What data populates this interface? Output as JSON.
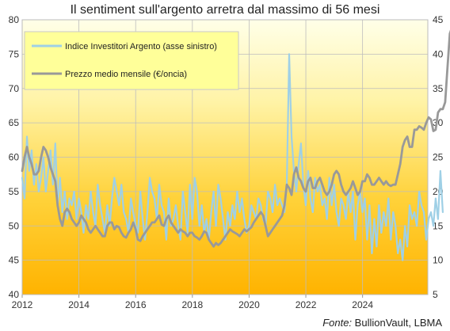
{
  "chart_data": {
    "type": "line",
    "title": "Il sentiment sull'argento arretra dal massimo di 56 mesi",
    "source_label": "Fonte:",
    "source_name": "BullionVault, LBMA",
    "x_ticks": [
      "2012",
      "2014",
      "2016",
      "2018",
      "2020",
      "2022",
      "2024"
    ],
    "xlim": [
      2012.0,
      2026.3
    ],
    "left_axis": {
      "ticks": [
        "40",
        "45",
        "50",
        "55",
        "60",
        "65",
        "70",
        "75",
        "80"
      ],
      "ylim": [
        40,
        80
      ]
    },
    "right_axis": {
      "ticks": [
        "5",
        "10",
        "15",
        "20",
        "25",
        "30",
        "35",
        "40",
        "45"
      ],
      "ylim": [
        5,
        45
      ]
    },
    "grid": true,
    "legend_position": "top-left",
    "background_gradient": [
      "#ffffe8",
      "#fff3a6",
      "#ffd23a",
      "#ffb300"
    ],
    "series": [
      {
        "name": "Indice Investitori Argento (asse sinistro)",
        "axis": "left",
        "color": "#9fd0e6",
        "x_start": 2012.0,
        "step": 0.0833,
        "values": [
          57,
          54,
          63,
          58,
          61,
          56,
          59,
          55,
          57,
          60,
          55,
          58,
          61,
          56,
          62,
          53,
          57,
          52,
          55,
          51,
          54,
          53,
          55,
          51,
          54,
          52,
          49,
          53,
          51,
          55,
          52,
          50,
          56,
          53,
          51,
          49,
          53,
          50,
          54,
          57,
          55,
          53,
          56,
          52,
          51,
          49,
          54,
          52,
          50,
          49,
          55,
          51,
          48,
          52,
          57,
          55,
          54,
          51,
          56,
          53,
          52,
          48,
          54,
          50,
          51,
          53,
          50,
          48,
          55,
          52,
          49,
          56,
          51,
          57,
          55,
          50,
          53,
          49,
          51,
          48,
          52,
          55,
          50,
          56,
          54,
          51,
          48,
          52,
          50,
          53,
          51,
          55,
          52,
          54,
          51,
          49,
          50,
          53,
          52,
          51,
          54,
          53,
          51,
          50,
          55,
          54,
          52,
          56,
          53,
          54,
          53,
          52,
          56,
          75,
          63,
          58,
          55,
          59,
          62,
          56,
          53,
          58,
          54,
          52,
          57,
          55,
          56,
          53,
          54,
          51,
          57,
          53,
          56,
          52,
          50,
          54,
          53,
          51,
          55,
          52,
          55,
          48,
          53,
          55,
          52,
          54,
          48,
          53,
          46,
          51,
          47,
          53,
          49,
          52,
          50,
          54,
          48,
          52,
          50,
          46,
          48,
          45,
          50,
          47,
          53,
          51,
          52,
          50,
          55,
          53,
          52,
          48,
          51,
          52,
          50,
          54,
          51,
          58,
          52
        ]
      },
      {
        "name": "Prezzo medio mensile (€/oncia)",
        "axis": "right",
        "color": "#999999",
        "x_start": 2012.0,
        "step": 0.0833,
        "values": [
          23,
          25,
          26.5,
          25,
          24,
          22.5,
          22.5,
          23,
          25,
          26.5,
          26,
          25,
          23.5,
          22.5,
          21.5,
          18,
          16,
          15,
          17,
          17.5,
          17,
          16,
          15.5,
          15,
          15.5,
          16.5,
          16,
          15.5,
          14.5,
          14,
          14.5,
          15,
          14.5,
          14,
          13.5,
          13.5,
          15,
          15.5,
          15.5,
          14.5,
          15,
          14.8,
          14,
          13.5,
          13.3,
          14,
          14.5,
          15.5,
          14.5,
          13,
          12.8,
          13.5,
          14,
          14.5,
          15,
          15.5,
          15.5,
          16,
          16.5,
          15.2,
          15,
          16,
          16.5,
          15.5,
          15,
          14.5,
          14,
          14.5,
          14.2,
          14,
          13.5,
          14,
          14,
          13.5,
          13.3,
          13,
          13.5,
          14.2,
          14,
          13,
          12.5,
          12,
          12.5,
          12.2,
          12.5,
          13,
          13.5,
          14,
          14.5,
          14.2,
          14,
          13.8,
          13.5,
          14,
          14.5,
          14.2,
          14.5,
          14.8,
          15.5,
          16,
          16.5,
          17,
          16.5,
          15,
          13.5,
          14,
          14.5,
          15,
          15.5,
          16,
          16.5,
          18,
          21,
          20.5,
          19.5,
          22.5,
          23.5,
          22,
          21.5,
          20.5,
          20,
          21.5,
          22,
          20.5,
          20.5,
          21.5,
          22,
          21,
          20,
          19.5,
          20,
          21,
          22.5,
          23,
          22.5,
          21,
          20,
          19.5,
          20,
          20.5,
          21.5,
          20.5,
          19.5,
          20,
          21.5,
          21.5,
          22.5,
          22,
          21,
          21,
          21.5,
          22,
          21.5,
          21,
          21.5,
          21,
          20.8,
          21,
          21,
          22.5,
          24,
          26.5,
          27.5,
          28,
          26.5,
          26.5,
          29,
          29,
          29.5,
          29.3,
          29,
          30,
          30.8,
          30.5,
          28.8,
          29,
          31.5,
          32,
          32,
          33,
          38,
          43,
          44
        ]
      }
    ]
  }
}
